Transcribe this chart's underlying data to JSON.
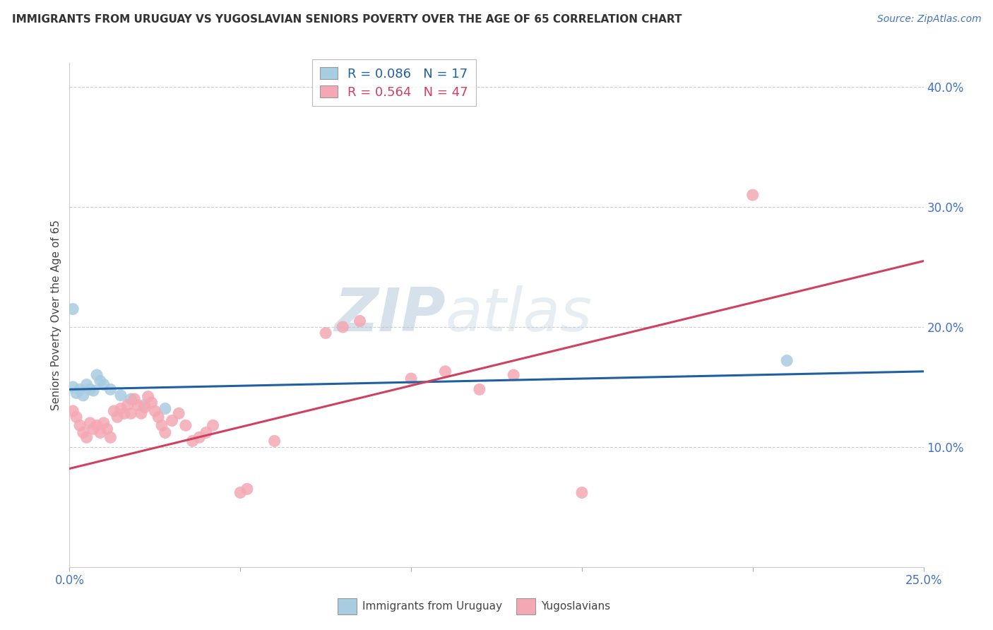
{
  "title": "IMMIGRANTS FROM URUGUAY VS YUGOSLAVIAN SENIORS POVERTY OVER THE AGE OF 65 CORRELATION CHART",
  "source": "Source: ZipAtlas.com",
  "ylabel": "Seniors Poverty Over the Age of 65",
  "xmin": 0.0,
  "xmax": 0.25,
  "ymin": 0.0,
  "ymax": 0.42,
  "xtick_vals": [
    0.0,
    0.05,
    0.1,
    0.15,
    0.2,
    0.25
  ],
  "xtick_labels": [
    "0.0%",
    "",
    "",
    "",
    "",
    "25.0%"
  ],
  "ytick_vals": [
    0.0,
    0.1,
    0.2,
    0.3,
    0.4
  ],
  "ytick_labels": [
    "",
    "10.0%",
    "20.0%",
    "30.0%",
    "40.0%"
  ],
  "legend_labels": [
    "Immigrants from Uruguay",
    "Yugoslavians"
  ],
  "blue_R": "0.086",
  "blue_N": "17",
  "pink_R": "0.564",
  "pink_N": "47",
  "blue_color": "#a8cce0",
  "pink_color": "#f4a8b4",
  "blue_line_color": "#2060a0",
  "pink_line_color": "#d04060",
  "watermark_zip": "ZIP",
  "watermark_atlas": "atlas",
  "blue_points": [
    [
      0.001,
      0.15
    ],
    [
      0.002,
      0.145
    ],
    [
      0.003,
      0.148
    ],
    [
      0.004,
      0.143
    ],
    [
      0.005,
      0.152
    ],
    [
      0.006,
      0.148
    ],
    [
      0.007,
      0.147
    ],
    [
      0.008,
      0.16
    ],
    [
      0.009,
      0.155
    ],
    [
      0.01,
      0.152
    ],
    [
      0.012,
      0.148
    ],
    [
      0.015,
      0.143
    ],
    [
      0.018,
      0.14
    ],
    [
      0.022,
      0.135
    ],
    [
      0.028,
      0.132
    ],
    [
      0.21,
      0.172
    ],
    [
      0.001,
      0.215
    ]
  ],
  "pink_points": [
    [
      0.001,
      0.13
    ],
    [
      0.002,
      0.125
    ],
    [
      0.003,
      0.118
    ],
    [
      0.004,
      0.112
    ],
    [
      0.005,
      0.108
    ],
    [
      0.006,
      0.12
    ],
    [
      0.007,
      0.115
    ],
    [
      0.008,
      0.118
    ],
    [
      0.009,
      0.112
    ],
    [
      0.01,
      0.12
    ],
    [
      0.011,
      0.115
    ],
    [
      0.012,
      0.108
    ],
    [
      0.013,
      0.13
    ],
    [
      0.014,
      0.125
    ],
    [
      0.015,
      0.132
    ],
    [
      0.016,
      0.128
    ],
    [
      0.017,
      0.135
    ],
    [
      0.018,
      0.128
    ],
    [
      0.019,
      0.14
    ],
    [
      0.02,
      0.135
    ],
    [
      0.021,
      0.128
    ],
    [
      0.022,
      0.133
    ],
    [
      0.023,
      0.142
    ],
    [
      0.024,
      0.137
    ],
    [
      0.025,
      0.13
    ],
    [
      0.026,
      0.125
    ],
    [
      0.027,
      0.118
    ],
    [
      0.028,
      0.112
    ],
    [
      0.03,
      0.122
    ],
    [
      0.032,
      0.128
    ],
    [
      0.034,
      0.118
    ],
    [
      0.036,
      0.105
    ],
    [
      0.038,
      0.108
    ],
    [
      0.04,
      0.112
    ],
    [
      0.042,
      0.118
    ],
    [
      0.05,
      0.062
    ],
    [
      0.052,
      0.065
    ],
    [
      0.06,
      0.105
    ],
    [
      0.075,
      0.195
    ],
    [
      0.08,
      0.2
    ],
    [
      0.085,
      0.205
    ],
    [
      0.1,
      0.157
    ],
    [
      0.11,
      0.163
    ],
    [
      0.12,
      0.148
    ],
    [
      0.13,
      0.16
    ],
    [
      0.15,
      0.062
    ],
    [
      0.2,
      0.31
    ]
  ]
}
